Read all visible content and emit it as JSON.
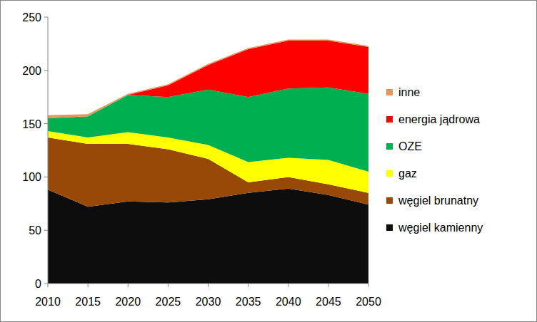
{
  "chart_data": {
    "type": "area",
    "stacked": true,
    "legend": "right",
    "x": [
      2010,
      2015,
      2020,
      2025,
      2030,
      2035,
      2040,
      2045,
      2050
    ],
    "xlim": [
      2010,
      2050
    ],
    "xticks": [
      2010,
      2015,
      2020,
      2025,
      2030,
      2035,
      2040,
      2045,
      2050
    ],
    "ylim": [
      0,
      250
    ],
    "yticks": [
      0,
      50,
      100,
      150,
      200,
      250
    ],
    "series": [
      {
        "name": "węgiel kamienny",
        "color": "#0d0d0d",
        "values": [
          88,
          72,
          77,
          76,
          79,
          85,
          89,
          83,
          74
        ]
      },
      {
        "name": "węgiel brunatny",
        "color": "#984807",
        "values": [
          49,
          59,
          54,
          50,
          38,
          10,
          11,
          10,
          11
        ]
      },
      {
        "name": "gaz",
        "color": "#ffff00",
        "values": [
          6,
          6,
          11,
          11,
          13,
          19,
          18,
          23,
          20
        ]
      },
      {
        "name": "OZE",
        "color": "#00b050",
        "values": [
          12,
          20,
          35,
          38,
          52,
          61,
          65,
          68,
          73
        ]
      },
      {
        "name": "energia jądrowa",
        "color": "#ff0000",
        "values": [
          0,
          0,
          0,
          11,
          23,
          45,
          45,
          44,
          44
        ]
      },
      {
        "name": "inne",
        "color": "#e8955a",
        "values": [
          3,
          2,
          1,
          1,
          1,
          1,
          1,
          1,
          1
        ]
      }
    ]
  }
}
